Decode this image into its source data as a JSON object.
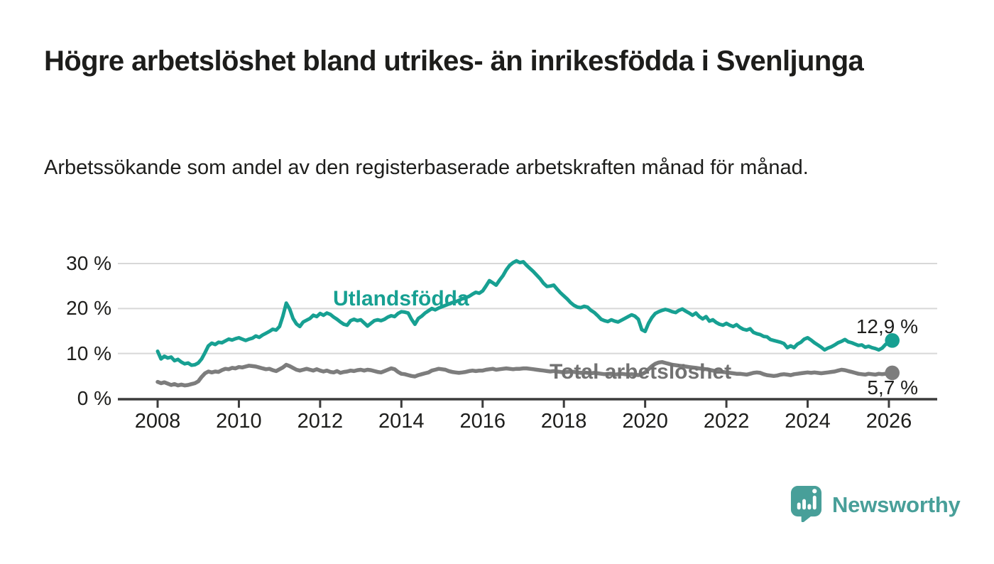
{
  "header": {
    "title": "Högre arbetslöshet bland utrikes- än inrikesfödda i Svenljunga",
    "subtitle": "Arbetssökande som andel av den registerbaserade arbetskraften månad för månad."
  },
  "branding": {
    "name": "Newsworthy",
    "icon": "newsworthy-speech-bubble-bar-chart-icon",
    "color": "#489f99"
  },
  "colors": {
    "background": "#ffffff",
    "grid": "#d8d8d8",
    "axis": "#3c3c3c",
    "text": "#1d1d1b"
  },
  "chart_data": {
    "type": "line",
    "title": "",
    "xlabel": "",
    "ylabel": "",
    "grid": "horizontal",
    "legend": "inline-labels",
    "xlim": [
      2007,
      2027.2
    ],
    "ylim": [
      0,
      32
    ],
    "x_start_year": 2008,
    "x_step_years": 0.083333,
    "xticks": [
      2008,
      2010,
      2012,
      2014,
      2016,
      2018,
      2020,
      2022,
      2024,
      2026
    ],
    "yticks": [
      {
        "value": 0,
        "label": "0 %"
      },
      {
        "value": 10,
        "label": "10 %"
      },
      {
        "value": 20,
        "label": "20 %"
      },
      {
        "value": 30,
        "label": "30 %"
      }
    ],
    "series": [
      {
        "id": "utlandsfodda",
        "name": "Utlandsfödda",
        "color": "#17a092",
        "end_label": "12,9 %",
        "last_value": 12.9,
        "values": [
          10.5,
          8.8,
          9.4,
          9.0,
          9.2,
          8.4,
          8.7,
          8.1,
          7.7,
          7.9,
          7.4,
          7.5,
          7.9,
          8.8,
          10.2,
          11.7,
          12.3,
          12.0,
          12.5,
          12.4,
          12.8,
          13.2,
          13.0,
          13.3,
          13.5,
          13.2,
          12.9,
          13.2,
          13.4,
          13.9,
          13.6,
          14.1,
          14.5,
          14.9,
          15.4,
          15.2,
          16.0,
          18.3,
          21.2,
          19.9,
          17.8,
          16.6,
          16.0,
          17.0,
          17.4,
          17.8,
          18.5,
          18.2,
          18.9,
          18.5,
          19.0,
          18.7,
          18.1,
          17.6,
          17.0,
          16.5,
          16.3,
          17.3,
          17.6,
          17.3,
          17.5,
          16.8,
          16.1,
          16.7,
          17.3,
          17.5,
          17.3,
          17.6,
          18.1,
          18.4,
          18.2,
          18.9,
          19.3,
          19.2,
          19.0,
          17.6,
          16.5,
          17.8,
          18.3,
          19.0,
          19.5,
          20.0,
          19.7,
          20.1,
          20.4,
          20.7,
          21.0,
          21.3,
          21.5,
          21.8,
          22.2,
          22.4,
          22.7,
          23.2,
          23.6,
          23.4,
          23.9,
          25.0,
          26.2,
          25.7,
          25.2,
          26.3,
          27.3,
          28.6,
          29.6,
          30.2,
          30.6,
          30.2,
          30.4,
          29.6,
          28.9,
          28.2,
          27.4,
          26.6,
          25.6,
          24.9,
          25.0,
          25.2,
          24.3,
          23.5,
          22.8,
          22.1,
          21.3,
          20.7,
          20.3,
          20.2,
          20.5,
          20.3,
          19.6,
          19.1,
          18.4,
          17.6,
          17.3,
          17.1,
          17.5,
          17.2,
          17.0,
          17.4,
          17.8,
          18.2,
          18.6,
          18.3,
          17.6,
          15.3,
          14.9,
          16.7,
          18.0,
          18.9,
          19.3,
          19.6,
          19.8,
          19.6,
          19.3,
          19.1,
          19.6,
          19.9,
          19.4,
          19.0,
          18.5,
          19.0,
          18.2,
          17.7,
          18.2,
          17.2,
          17.5,
          16.9,
          16.5,
          16.3,
          16.7,
          16.3,
          16.0,
          16.4,
          15.8,
          15.4,
          15.2,
          15.5,
          14.7,
          14.4,
          14.2,
          13.8,
          13.7,
          13.1,
          12.9,
          12.7,
          12.5,
          12.2,
          11.3,
          11.7,
          11.3,
          12.1,
          12.5,
          13.2,
          13.5,
          13.0,
          12.4,
          11.9,
          11.4,
          10.8,
          11.2,
          11.5,
          11.9,
          12.4,
          12.7,
          13.1,
          12.6,
          12.4,
          12.1,
          11.8,
          11.9,
          11.4,
          11.6,
          11.3,
          11.1,
          10.8,
          11.2,
          12.0,
          12.5,
          12.9
        ]
      },
      {
        "id": "total-arbetsloshet",
        "name": "Total arbetslöshet",
        "color": "#7d7d7d",
        "end_label": "5,7 %",
        "last_value": 5.7,
        "values": [
          3.7,
          3.4,
          3.6,
          3.3,
          3.0,
          3.2,
          2.9,
          3.1,
          2.9,
          3.0,
          3.2,
          3.4,
          3.8,
          4.8,
          5.6,
          6.0,
          5.8,
          6.0,
          5.9,
          6.3,
          6.6,
          6.5,
          6.8,
          6.7,
          7.0,
          6.9,
          7.1,
          7.3,
          7.2,
          7.1,
          6.9,
          6.7,
          6.5,
          6.6,
          6.3,
          6.1,
          6.5,
          6.9,
          7.5,
          7.2,
          6.8,
          6.4,
          6.2,
          6.4,
          6.6,
          6.4,
          6.2,
          6.5,
          6.2,
          6.0,
          6.2,
          5.9,
          5.8,
          6.1,
          5.7,
          5.9,
          6.0,
          6.2,
          6.1,
          6.3,
          6.4,
          6.2,
          6.4,
          6.3,
          6.1,
          5.9,
          5.8,
          6.1,
          6.4,
          6.7,
          6.5,
          5.9,
          5.5,
          5.4,
          5.2,
          5.0,
          4.9,
          5.2,
          5.4,
          5.6,
          5.8,
          6.2,
          6.4,
          6.6,
          6.5,
          6.4,
          6.1,
          5.9,
          5.8,
          5.7,
          5.8,
          5.9,
          6.1,
          6.2,
          6.1,
          6.2,
          6.2,
          6.4,
          6.5,
          6.6,
          6.4,
          6.5,
          6.6,
          6.7,
          6.6,
          6.5,
          6.6,
          6.6,
          6.7,
          6.7,
          6.6,
          6.5,
          6.4,
          6.3,
          6.2,
          6.1,
          6.0,
          6.1,
          6.0,
          5.9,
          5.8,
          5.9,
          6.0,
          5.9,
          5.8,
          5.7,
          5.8,
          5.7,
          5.6,
          5.7,
          5.6,
          5.5,
          5.4,
          5.5,
          5.4,
          5.3,
          5.4,
          5.5,
          5.4,
          5.3,
          5.4,
          5.3,
          5.2,
          5.4,
          5.8,
          6.5,
          7.2,
          7.7,
          8.0,
          8.1,
          7.9,
          7.7,
          7.5,
          7.4,
          7.3,
          7.2,
          7.1,
          7.0,
          6.9,
          6.8,
          6.7,
          6.6,
          6.5,
          6.4,
          6.2,
          6.1,
          6.0,
          5.9,
          5.8,
          5.7,
          5.6,
          5.5,
          5.5,
          5.4,
          5.3,
          5.5,
          5.7,
          5.8,
          5.7,
          5.4,
          5.2,
          5.1,
          5.0,
          5.1,
          5.3,
          5.4,
          5.3,
          5.2,
          5.4,
          5.5,
          5.6,
          5.7,
          5.8,
          5.7,
          5.8,
          5.7,
          5.6,
          5.7,
          5.8,
          5.9,
          6.0,
          6.2,
          6.4,
          6.3,
          6.1,
          5.9,
          5.7,
          5.5,
          5.4,
          5.3,
          5.5,
          5.4,
          5.3,
          5.5,
          5.4,
          5.5,
          5.6,
          5.7
        ]
      }
    ]
  }
}
